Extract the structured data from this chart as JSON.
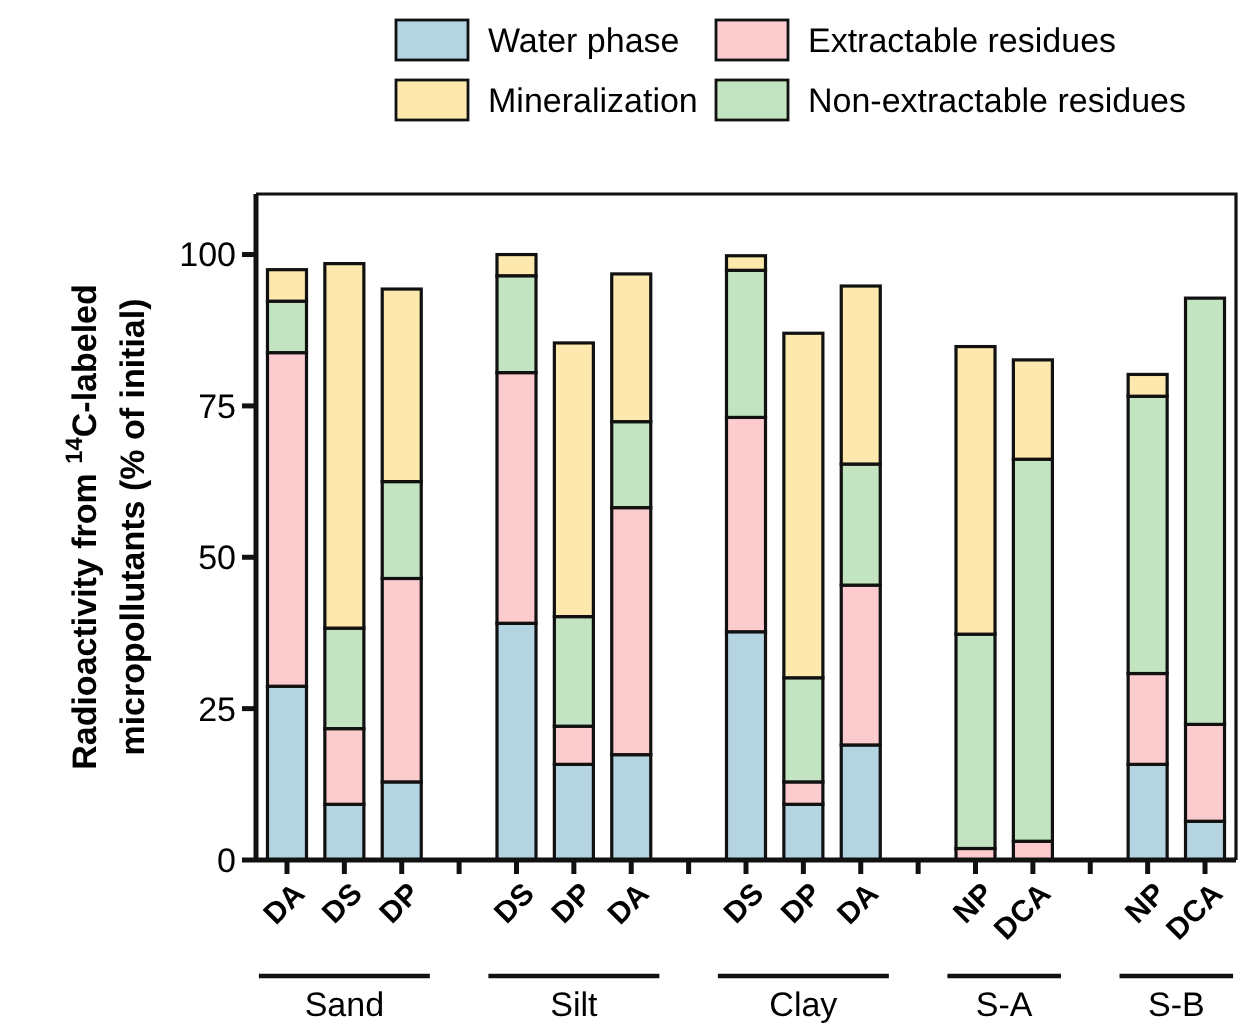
{
  "chart_data": {
    "type": "bar",
    "stacked": true,
    "ylabel": "Radioactivity from $^{14}$C-labeled micropollutants (% of initial)",
    "categories": [
      "DA",
      "DS",
      "DP",
      null,
      "DS",
      "DP",
      "DA",
      null,
      "DS",
      "DP",
      "DA",
      null,
      "NP",
      "DCA",
      null,
      "NP",
      "DCA"
    ],
    "series": [
      {
        "name": "Water phase",
        "color": "#b3d4e0",
        "values": [
          28.7,
          9.2,
          12.9,
          null,
          39.1,
          15.8,
          17.4,
          null,
          37.7,
          9.2,
          19.0,
          null,
          0,
          0,
          null,
          15.8,
          6.4
        ]
      },
      {
        "name": "Extractable residues",
        "color": "#fccbcd",
        "values": [
          55.1,
          12.5,
          33.6,
          null,
          41.4,
          6.3,
          40.8,
          null,
          35.4,
          3.7,
          26.4,
          null,
          1.9,
          3.1,
          null,
          15.0,
          16.0
        ]
      },
      {
        "name": "Non-extractable residues",
        "color": "#c3e4c1",
        "values": [
          8.5,
          16.6,
          16.0,
          null,
          16.0,
          18.1,
          14.2,
          null,
          24.3,
          17.2,
          20.0,
          null,
          35.4,
          63.1,
          null,
          45.8,
          70.4
        ]
      },
      {
        "name": "Mineralization",
        "color": "#fde9ad",
        "values": [
          5.2,
          60.2,
          31.8,
          null,
          3.5,
          45.2,
          24.4,
          null,
          2.4,
          56.9,
          29.4,
          null,
          47.5,
          16.4,
          null,
          3.6,
          0
        ]
      }
    ],
    "annotations": [
      "Sand",
      "Silt",
      "Clay",
      "S-A",
      "S-B"
    ],
    "ylim": [
      0,
      110
    ],
    "yticks": [
      0,
      25,
      50,
      75,
      100
    ],
    "grid": false,
    "legend": "top"
  }
}
